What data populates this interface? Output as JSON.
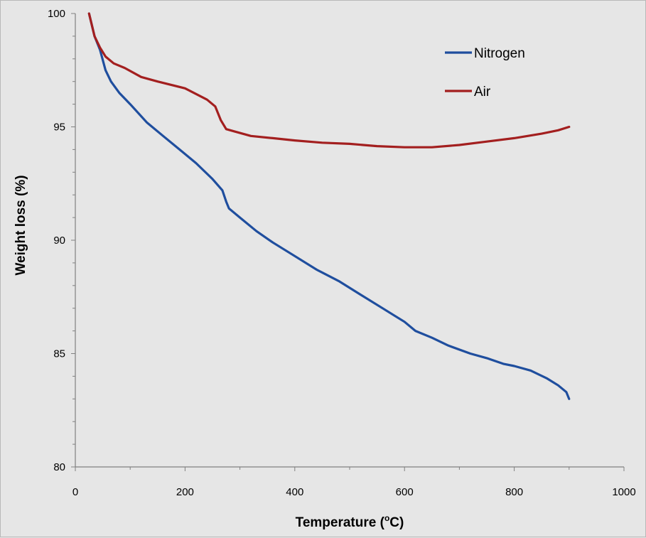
{
  "chart_data": {
    "type": "line",
    "title": "",
    "xlabel": "Temperature (°C)",
    "xlabel_main": "Temperature (",
    "xlabel_degree": "o",
    "xlabel_unit": "C)",
    "ylabel": "Weight loss (%)",
    "xlim": [
      0,
      1000
    ],
    "ylim": [
      80,
      100
    ],
    "xticks": [
      0,
      200,
      400,
      600,
      800,
      1000
    ],
    "yticks": [
      80,
      85,
      90,
      95,
      100
    ],
    "grid": false,
    "legend_position": "top-right",
    "series": [
      {
        "name": "Nitrogen",
        "color": "#1f4e9e",
        "x": [
          25,
          35,
          45,
          55,
          65,
          80,
          100,
          130,
          160,
          190,
          220,
          250,
          268,
          275,
          280,
          300,
          330,
          360,
          400,
          440,
          480,
          520,
          560,
          580,
          600,
          620,
          650,
          680,
          720,
          750,
          780,
          800,
          830,
          860,
          880,
          895,
          900
        ],
        "y": [
          100,
          99.0,
          98.4,
          97.5,
          97.0,
          96.5,
          96.0,
          95.2,
          94.6,
          94.0,
          93.4,
          92.7,
          92.2,
          91.7,
          91.4,
          91.0,
          90.4,
          89.9,
          89.3,
          88.7,
          88.2,
          87.6,
          87.0,
          86.7,
          86.4,
          86.0,
          85.7,
          85.35,
          85.0,
          84.8,
          84.55,
          84.45,
          84.25,
          83.9,
          83.6,
          83.3,
          83.0
        ]
      },
      {
        "name": "Air",
        "color": "#a31f1f",
        "x": [
          25,
          35,
          45,
          55,
          70,
          90,
          120,
          150,
          200,
          240,
          255,
          265,
          275,
          290,
          320,
          360,
          400,
          450,
          500,
          550,
          600,
          650,
          700,
          750,
          800,
          850,
          880,
          900
        ],
        "y": [
          100,
          99.0,
          98.5,
          98.1,
          97.8,
          97.6,
          97.2,
          97.0,
          96.7,
          96.2,
          95.9,
          95.3,
          94.9,
          94.8,
          94.6,
          94.5,
          94.4,
          94.3,
          94.25,
          94.15,
          94.1,
          94.1,
          94.2,
          94.35,
          94.5,
          94.7,
          94.85,
          95.0
        ]
      }
    ]
  }
}
